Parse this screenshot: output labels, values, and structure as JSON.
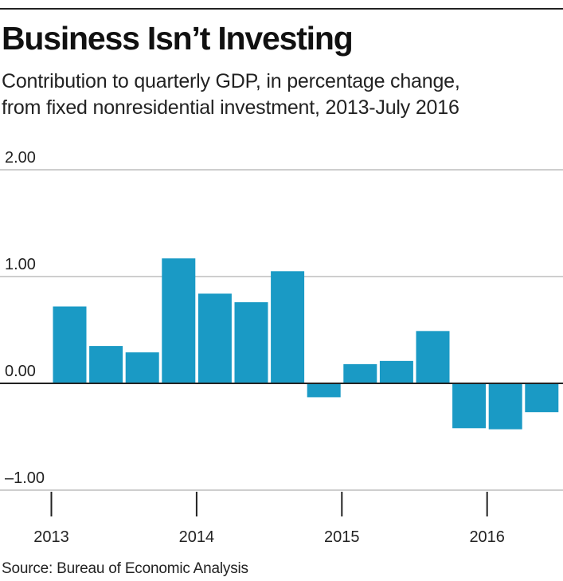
{
  "chart_data": {
    "type": "bar",
    "title": "Business Isn’t Investing",
    "subtitle_lines": [
      "Contribution to quarterly GDP, in percentage change,",
      "from fixed nonresidential investment, 2013-July 2016"
    ],
    "xlabel": "",
    "ylabel": "",
    "ylim": [
      -1.0,
      2.0
    ],
    "y_ticks": [
      {
        "value": 2.0,
        "label": "2.00"
      },
      {
        "value": 1.0,
        "label": "1.00"
      },
      {
        "value": 0.0,
        "label": "0.00"
      },
      {
        "value": -1.0,
        "label": "–1.00"
      }
    ],
    "x_year_labels": [
      "2013",
      "2014",
      "2015",
      "2016"
    ],
    "categories": [
      "2013 Q1",
      "2013 Q2",
      "2013 Q3",
      "2013 Q4",
      "2014 Q1",
      "2014 Q2",
      "2014 Q3",
      "2014 Q4",
      "2015 Q1",
      "2015 Q2",
      "2015 Q3",
      "2015 Q4",
      "2016 Q1",
      "2016 Q2"
    ],
    "values": [
      0.72,
      0.35,
      0.29,
      1.17,
      0.84,
      0.76,
      1.05,
      -0.13,
      0.18,
      0.21,
      0.49,
      -0.42,
      -0.43,
      -0.27
    ],
    "bar_color": "#1a9ac5",
    "grid_color": "#bdbdbd",
    "grid": true,
    "legend": "none"
  },
  "source": "Source: Bureau of Economic Analysis"
}
